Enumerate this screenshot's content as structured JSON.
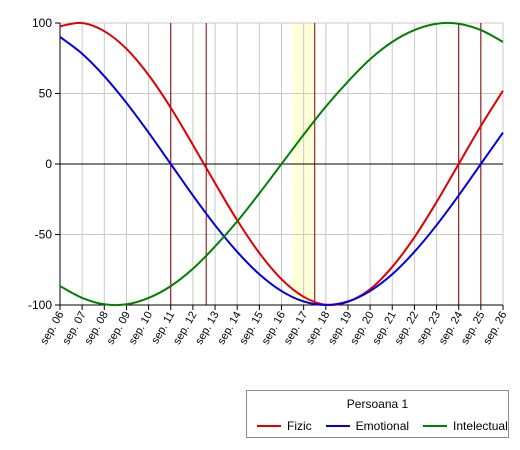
{
  "chart_data": {
    "type": "line",
    "categories": [
      "sep. 06",
      "sep. 07",
      "sep. 08",
      "sep. 09",
      "sep. 10",
      "sep. 11",
      "sep. 12",
      "sep. 13",
      "sep. 14",
      "sep. 15",
      "sep. 16",
      "sep. 17",
      "sep. 18",
      "sep. 19",
      "sep. 20",
      "sep. 21",
      "sep. 22",
      "sep. 23",
      "sep. 24",
      "sep. 25",
      "sep. 26"
    ],
    "ylim": [
      -100,
      100
    ],
    "yticks": [
      100,
      50,
      0,
      -50,
      -100
    ],
    "grid": true,
    "highlight_band": {
      "from": 10.5,
      "to": 11.5,
      "color": "#ffffd8"
    },
    "vertical_markers": [
      5,
      6.6,
      11.5,
      18,
      19
    ],
    "legend": {
      "title": "Persoana 1",
      "position": "bottom-right"
    },
    "series": [
      {
        "name": "Fizic",
        "color": "#e00000",
        "values": [
          97.7,
          100,
          94.2,
          81.7,
          63.1,
          39.9,
          13.6,
          -13.6,
          -39.9,
          -63.1,
          -81.7,
          -94.2,
          -99.8,
          -97.7,
          -88.8,
          -73.0,
          -52.0,
          -27.0,
          0,
          27.0,
          52.0
        ]
      },
      {
        "name": "Emotional",
        "color": "#0000e0",
        "values": [
          90.1,
          78.2,
          62.3,
          43.4,
          22.3,
          0,
          -22.3,
          -43.4,
          -62.3,
          -78.2,
          -90.1,
          -97.5,
          -100,
          -97.5,
          -90.1,
          -78.2,
          -62.3,
          -43.4,
          -22.3,
          0,
          22.3
        ]
      },
      {
        "name": "Intelectual",
        "color": "#008000",
        "values": [
          -86.6,
          -95.0,
          -99.5,
          -99.5,
          -95.0,
          -86.6,
          -74.3,
          -58.5,
          -40.7,
          -20.8,
          0,
          20.8,
          40.7,
          58.5,
          74.3,
          86.6,
          95.0,
          99.5,
          99.5,
          95.0,
          86.6
        ]
      }
    ]
  }
}
